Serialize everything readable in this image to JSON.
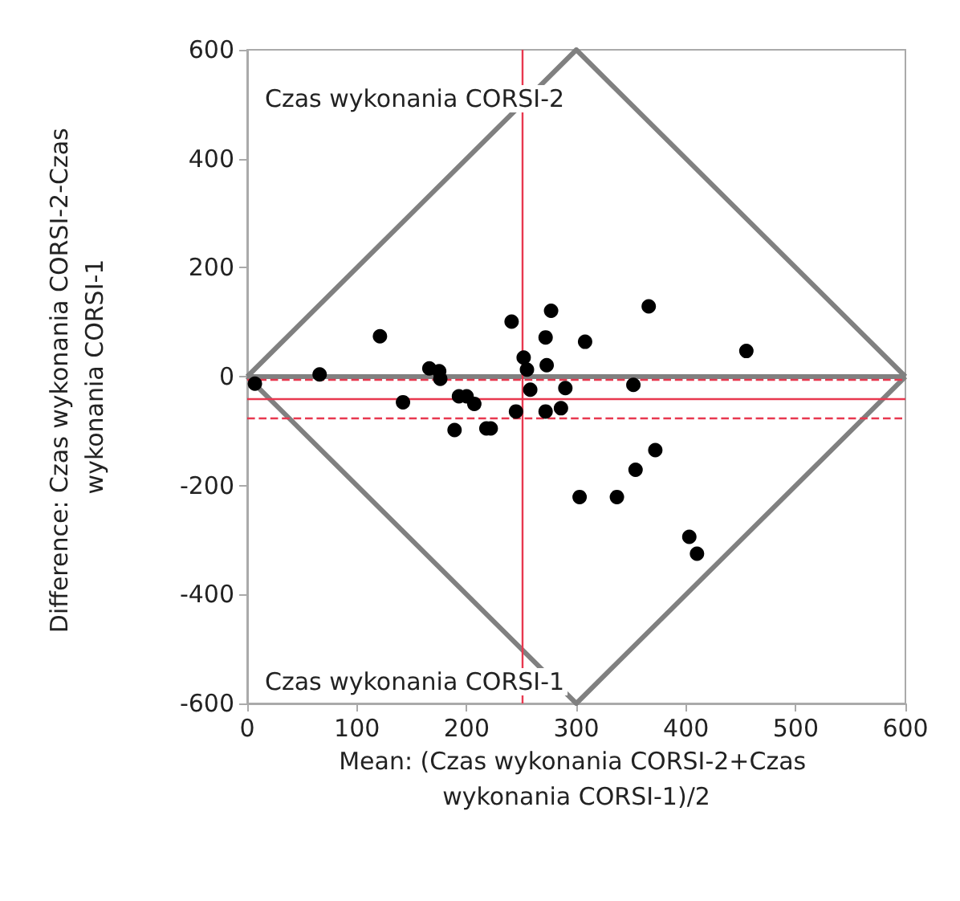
{
  "chart_data": {
    "type": "scatter",
    "xlabel": "Mean: (Czas wykonania CORSI-2+Czas wykonania CORSI-1)/2",
    "ylabel": "Difference: Czas wykonania CORSI-2-Czas wykonania CORSI-1",
    "xlim": [
      0,
      600
    ],
    "xticks": [
      0,
      100,
      200,
      300,
      400,
      500,
      600
    ],
    "ylim": [
      -600,
      600
    ],
    "yticks": [
      -600,
      -400,
      -200,
      0,
      200,
      400,
      600
    ],
    "grid": false,
    "marker": "circle",
    "annotations": [
      "Czas wykonania CORSI-2",
      "Czas wykonania CORSI-1"
    ],
    "series": [
      {
        "type": "scatter",
        "color": "#000000",
        "x": [
          7,
          66,
          121,
          142,
          166,
          175,
          176,
          189,
          193,
          200,
          207,
          218,
          222,
          241,
          245,
          252,
          255,
          258,
          272,
          272,
          273,
          277,
          286,
          290,
          308,
          352,
          354,
          303,
          337,
          366,
          372,
          403,
          410,
          455
        ],
        "values": [
          -13,
          4,
          74,
          -47,
          15,
          10,
          -4,
          -98,
          -36,
          -36,
          -50,
          -95,
          -95,
          101,
          -64,
          35,
          13,
          -24,
          -64,
          72,
          21,
          121,
          -58,
          -21,
          64,
          -15,
          -171,
          -221,
          -221,
          129,
          -135,
          -294,
          -325,
          47
        ]
      },
      {
        "type": "line",
        "color": "#808080",
        "marker": "none",
        "x": [
          0,
          300,
          600
        ],
        "values": [
          0,
          600,
          0
        ]
      },
      {
        "type": "line",
        "color": "#808080",
        "marker": "none",
        "x": [
          0,
          300,
          600
        ],
        "values": [
          0,
          -600,
          0
        ]
      }
    ],
    "ref_lines": [
      {
        "axis": "y",
        "value": 0,
        "color": "#808080",
        "line_style": "solid"
      },
      {
        "axis": "y",
        "value": -40,
        "color": "#e8384f",
        "line_style": "solid"
      },
      {
        "axis": "y",
        "value": -6,
        "color": "#e8384f",
        "line_style": "dashed"
      },
      {
        "axis": "y",
        "value": -77,
        "color": "#e8384f",
        "line_style": "dashed"
      },
      {
        "axis": "x",
        "value": 250,
        "color": "#e8384f",
        "line_style": "solid"
      }
    ]
  }
}
